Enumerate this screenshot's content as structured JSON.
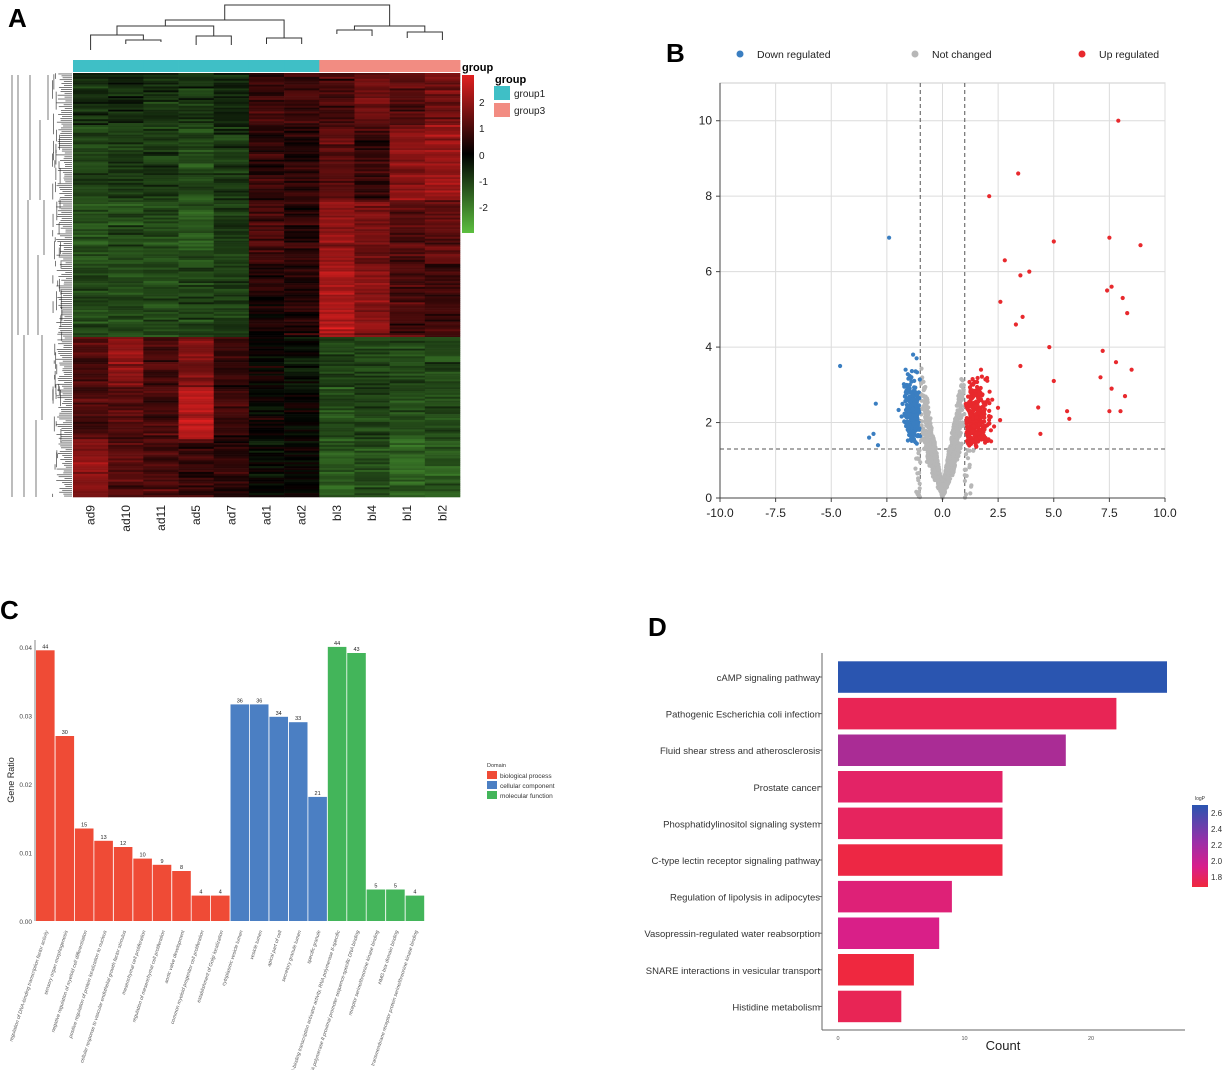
{
  "panel_labels": {
    "a": "A",
    "b": "B",
    "c": "C",
    "d": "D"
  },
  "colors": {
    "group1": "#3fbfc6",
    "group3": "#f28c82",
    "down": "#3a7ec1",
    "notchanged": "#b7b7b7",
    "up": "#e8292d",
    "bp": "#ef4b36",
    "cc": "#4b7fc3",
    "mf": "#43b55a",
    "heat_low": "#5cbf3f",
    "heat_mid": "#000000",
    "heat_high": "#e02020"
  },
  "chart_data": [
    {
      "type": "heatmap",
      "columns": [
        "ad9",
        "ad10",
        "ad11",
        "ad5",
        "ad7",
        "ad1",
        "ad2",
        "bl3",
        "bl4",
        "bl1",
        "bl2"
      ],
      "column_groups": [
        "group1",
        "group1",
        "group1",
        "group1",
        "group1",
        "group1",
        "group1",
        "group3",
        "group3",
        "group3",
        "group3"
      ],
      "legend_title": "group",
      "legend_entries": [
        "group1",
        "group3"
      ],
      "colorbar_title": "group",
      "colorbar_ticks": [
        "2",
        "1",
        "0",
        "-1",
        "-2"
      ],
      "colorbar_range": [
        -2.8,
        2.8
      ],
      "blocks": [
        {
          "rows_start": 0.0,
          "rows_end": 0.12,
          "values": [
            -0.6,
            -0.5,
            -0.6,
            -0.7,
            -0.5,
            0.6,
            0.7,
            0.8,
            1.2,
            1.0,
            1.3
          ]
        },
        {
          "rows_start": 0.12,
          "rows_end": 0.3,
          "values": [
            -0.9,
            -0.8,
            -0.8,
            -1.0,
            -0.7,
            0.5,
            0.4,
            1.0,
            0.6,
            1.5,
            1.8
          ]
        },
        {
          "rows_start": 0.3,
          "rows_end": 0.45,
          "values": [
            -1.1,
            -1.0,
            -0.9,
            -1.2,
            -0.8,
            0.8,
            0.5,
            1.7,
            1.4,
            0.9,
            1.1
          ]
        },
        {
          "rows_start": 0.45,
          "rows_end": 0.62,
          "values": [
            -1.0,
            -1.0,
            -0.9,
            -0.9,
            -0.8,
            0.3,
            0.4,
            2.0,
            1.6,
            0.8,
            0.7
          ]
        },
        {
          "rows_start": 0.62,
          "rows_end": 0.74,
          "values": [
            0.9,
            1.6,
            0.8,
            1.5,
            0.6,
            0.1,
            -0.2,
            -0.9,
            -0.8,
            -1.0,
            -0.9
          ]
        },
        {
          "rows_start": 0.74,
          "rows_end": 0.86,
          "values": [
            0.8,
            0.9,
            0.7,
            2.2,
            0.7,
            0.0,
            0.0,
            -1.0,
            -0.9,
            -1.1,
            -1.0
          ]
        },
        {
          "rows_start": 0.86,
          "rows_end": 1.0,
          "values": [
            1.6,
            1.0,
            0.8,
            0.6,
            0.5,
            -0.1,
            0.0,
            -1.2,
            -1.0,
            -1.3,
            -1.2
          ]
        }
      ]
    },
    {
      "type": "scatter",
      "title": "",
      "legend": [
        {
          "name": "Down regulated"
        },
        {
          "name": "Not changed"
        },
        {
          "name": "Up regulated"
        }
      ],
      "xlim": [
        -10.0,
        10.0
      ],
      "ylim": [
        0,
        11
      ],
      "xticks": [
        "-10.0",
        "-7.5",
        "-5.0",
        "-2.5",
        "0.0",
        "2.5",
        "5.0",
        "7.5",
        "10.0"
      ],
      "yticks": [
        "0",
        "2",
        "4",
        "6",
        "8",
        "10"
      ],
      "fc_threshold": [
        -1,
        1
      ],
      "p_threshold": 1.3,
      "up_outliers": [
        [
          7.9,
          10.0
        ],
        [
          3.4,
          8.6
        ],
        [
          2.1,
          8.0
        ],
        [
          5.0,
          6.8
        ],
        [
          7.5,
          6.9
        ],
        [
          8.9,
          6.7
        ],
        [
          2.8,
          6.3
        ],
        [
          3.9,
          6.0
        ],
        [
          3.5,
          5.9
        ],
        [
          7.6,
          5.6
        ],
        [
          8.1,
          5.3
        ],
        [
          7.4,
          5.5
        ],
        [
          8.3,
          4.9
        ],
        [
          3.6,
          4.8
        ],
        [
          2.6,
          5.2
        ],
        [
          3.3,
          4.6
        ],
        [
          4.8,
          4.0
        ],
        [
          7.2,
          3.9
        ],
        [
          7.8,
          3.6
        ],
        [
          8.5,
          3.4
        ],
        [
          3.5,
          3.5
        ],
        [
          5.0,
          3.1
        ],
        [
          7.1,
          3.2
        ],
        [
          7.6,
          2.9
        ],
        [
          8.2,
          2.7
        ],
        [
          5.6,
          2.3
        ],
        [
          4.3,
          2.4
        ],
        [
          4.4,
          1.7
        ],
        [
          7.5,
          2.3
        ],
        [
          8.0,
          2.3
        ],
        [
          5.7,
          2.1
        ]
      ],
      "down_outliers": [
        [
          -2.4,
          6.9
        ],
        [
          -4.6,
          3.5
        ],
        [
          -3.0,
          2.5
        ],
        [
          -3.3,
          1.6
        ],
        [
          -2.9,
          1.4
        ],
        [
          -3.1,
          1.7
        ]
      ]
    },
    {
      "type": "bar",
      "ylabel": "Gene Ratio",
      "ylim": [
        0,
        0.041
      ],
      "yticks": [
        "0.00",
        "0.01",
        "0.02",
        "0.03",
        "0.04"
      ],
      "legend_title": "Domain",
      "legend": [
        "biological process",
        "cellular component",
        "molecular function"
      ],
      "categories": [
        "regulation of DNA-binding transcription factor activity",
        "sensory organ morphogenesis",
        "negative regulation of myeloid cell differentiation",
        "positive regulation of protein localization to nucleus",
        "cellular response to vascular endothelial growth factor stimulus",
        "mesenchymal cell proliferation",
        "regulation of mesenchymal cell proliferation",
        "aortic valve development",
        "common myeloid progenitor cell proliferation",
        "establishment of Golgi localization",
        "cytoplasmic vesicle lumen",
        "vesicle lumen",
        "apical part of cell",
        "secretory granule lumen",
        "specific granule",
        "DNA-binding transcription activator activity, RNA polymerase II-specific",
        "RNA polymerase II proximal promoter sequence-specific DNA binding",
        "receptor serine/threonine kinase binding",
        "HMG box domain binding",
        "transmembrane receptor protein serine/threonine kinase binding"
      ],
      "domains": [
        "bp",
        "bp",
        "bp",
        "bp",
        "bp",
        "bp",
        "bp",
        "bp",
        "bp",
        "bp",
        "cc",
        "cc",
        "cc",
        "cc",
        "cc",
        "mf",
        "mf",
        "mf",
        "mf",
        "mf"
      ],
      "values": [
        0.0395,
        0.027,
        0.0135,
        0.0117,
        0.0108,
        0.0091,
        0.0082,
        0.0073,
        0.0037,
        0.0037,
        0.0316,
        0.0316,
        0.0298,
        0.029,
        0.0181,
        0.04,
        0.0391,
        0.0046,
        0.0046,
        0.0037
      ],
      "labels": [
        "44",
        "30",
        "15",
        "13",
        "12",
        "10",
        "9",
        "8",
        "4",
        "4",
        "36",
        "36",
        "34",
        "33",
        "21",
        "44",
        "43",
        "5",
        "5",
        "4"
      ]
    },
    {
      "type": "bar",
      "orientation": "horizontal",
      "xlabel": "Count",
      "xlim": [
        0,
        26
      ],
      "xticks": [
        "0",
        "10",
        "20"
      ],
      "colorbar_title": "logP",
      "colorbar_ticks": [
        "2.6",
        "2.4",
        "2.2",
        "2.0",
        "1.8"
      ],
      "categories": [
        "cAMP signaling pathway",
        "Pathogenic Escherichia coli infection",
        "Fluid shear stress and atherosclerosis",
        "Prostate cancer",
        "Phosphatidylinositol signaling system",
        "C-type lectin receptor signaling pathway",
        "Regulation of lipolysis in adipocytes",
        "Vasopressin-regulated water reabsorption",
        "SNARE interactions in vesicular transport",
        "Histidine metabolism"
      ],
      "values": [
        26,
        22,
        18,
        13,
        13,
        13,
        9,
        8,
        6,
        5
      ],
      "logp": [
        2.65,
        1.85,
        2.3,
        1.95,
        1.9,
        1.75,
        2.05,
        2.15,
        1.72,
        1.85
      ]
    }
  ]
}
